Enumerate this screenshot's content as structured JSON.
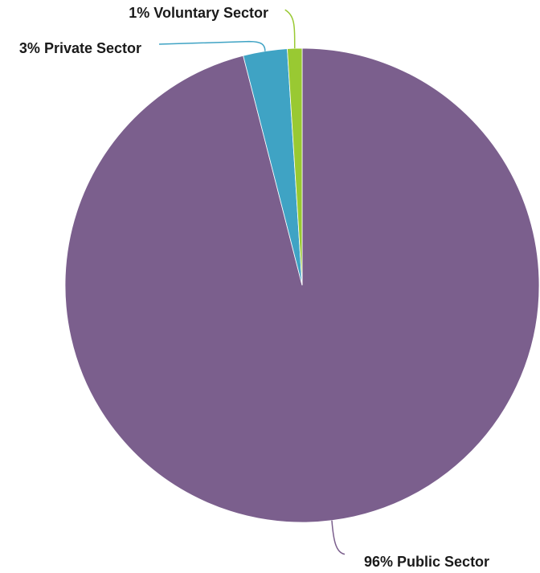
{
  "chart_data": {
    "type": "pie",
    "title": "",
    "start_angle_deg": 0,
    "direction": "clockwise",
    "slices": [
      {
        "label": "Public Sector",
        "value": 96,
        "display": "96% Public Sector",
        "color": "#7b5f8d",
        "leader_color": "#7b5f8d"
      },
      {
        "label": "Private Sector",
        "value": 3,
        "display": "3% Private Sector",
        "color": "#3fa3c4",
        "leader_color": "#3fa3c4"
      },
      {
        "label": "Voluntary Sector",
        "value": 1,
        "display": "1% Voluntary Sector",
        "color": "#99c932",
        "leader_color": "#99c932"
      }
    ],
    "legend": "none"
  }
}
